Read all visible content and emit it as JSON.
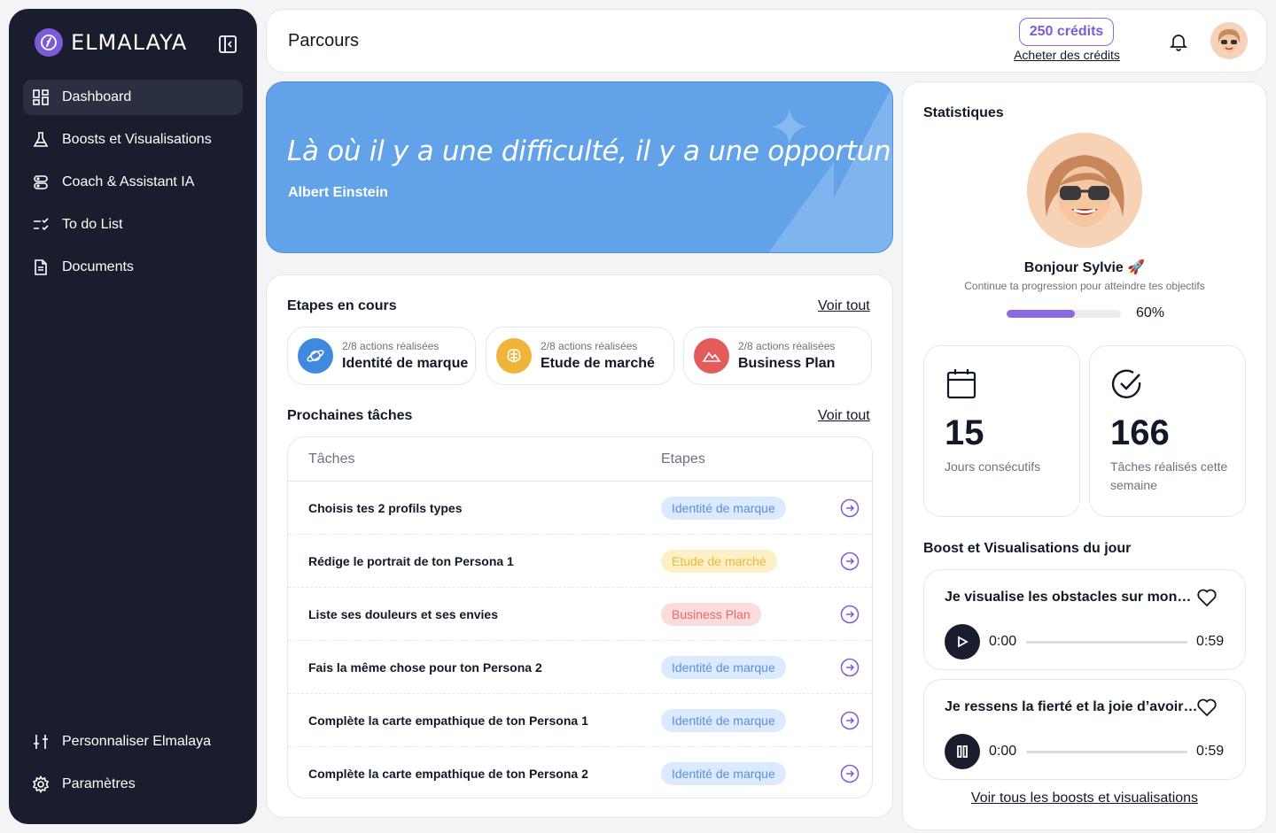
{
  "brand": {
    "name": "ELMALAYA"
  },
  "sidebar": {
    "items": [
      {
        "label": "Dashboard",
        "icon": "dashboard-icon",
        "active": true
      },
      {
        "label": "Boosts et Visualisations",
        "icon": "flask-icon"
      },
      {
        "label": "Coach & Assistant IA",
        "icon": "assistant-icon"
      },
      {
        "label": "To do List",
        "icon": "checklist-icon"
      },
      {
        "label": "Documents",
        "icon": "document-icon"
      }
    ],
    "bottom_items": [
      {
        "label": "Personnaliser Elmalaya",
        "icon": "sliders-icon"
      },
      {
        "label": "Paramètres",
        "icon": "gear-icon"
      }
    ]
  },
  "header": {
    "title": "Parcours",
    "credits": "250 crédits",
    "buy_credits": "Acheter des crédits"
  },
  "hero": {
    "quote": "Là où il y a une difficulté, il y a une opportunité.",
    "author": "Albert Einstein"
  },
  "steps": {
    "title": "Etapes en cours",
    "see_all": "Voir tout",
    "items": [
      {
        "meta": "2/8 actions réalisées",
        "name": "Identité de marque",
        "color": "#3f8ae0",
        "icon": "planet-icon"
      },
      {
        "meta": "2/8 actions réalisées",
        "name": "Etude de marché",
        "color": "#f0b43b",
        "icon": "brain-icon"
      },
      {
        "meta": "2/8 actions réalisées",
        "name": "Business Plan",
        "color": "#e35c5c",
        "icon": "mountain-icon"
      }
    ]
  },
  "tasks": {
    "title": "Prochaines tâches",
    "see_all": "Voir tout",
    "col_task": "Tâches",
    "col_step": "Etapes",
    "rows": [
      {
        "task": "Choisis tes 2 profils types",
        "step": "Identité de marque",
        "tone": "blue"
      },
      {
        "task": "Rédige le portrait de ton Persona 1",
        "step": "Etude de marché",
        "tone": "yellow"
      },
      {
        "task": "Liste ses douleurs et ses envies",
        "step": "Business Plan",
        "tone": "red"
      },
      {
        "task": "Fais la même chose pour ton Persona 2",
        "step": "Identité de marque",
        "tone": "blue"
      },
      {
        "task": "Complète la carte empathique de ton Persona 1",
        "step": "Identité de marque",
        "tone": "blue"
      },
      {
        "task": "Complète la carte empathique de ton Persona 2",
        "step": "Identité de marque",
        "tone": "blue"
      }
    ]
  },
  "stats": {
    "title": "Statistiques",
    "greeting": "Bonjour Sylvie 🚀",
    "subtitle": "Continue ta progression pour atteindre tes objectifs",
    "progress": 60,
    "progress_label": "60%",
    "days_value": "15",
    "days_label": "Jours consécutifs",
    "tasks_value": "166",
    "tasks_label": "Tâches réalisés cette semaine"
  },
  "boosts": {
    "title": "Boost et Visualisations du jour",
    "items": [
      {
        "title": "Je visualise les obstacles sur mon…",
        "current": "0:00",
        "total": "0:59",
        "state": "paused"
      },
      {
        "title": "Je ressens la fierté et la joie d’avoir…",
        "current": "0:00",
        "total": "0:59",
        "state": "playing"
      }
    ],
    "see_all": "Voir tous les boosts et visualisations"
  }
}
